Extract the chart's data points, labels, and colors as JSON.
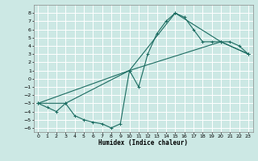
{
  "xlabel": "Humidex (Indice chaleur)",
  "bg_color": "#cce8e4",
  "grid_color": "#ffffff",
  "line_color": "#1a6b60",
  "xlim": [
    -0.5,
    23.5
  ],
  "ylim": [
    -6.5,
    9.0
  ],
  "xticks": [
    0,
    1,
    2,
    3,
    4,
    5,
    6,
    7,
    8,
    9,
    10,
    11,
    12,
    13,
    14,
    15,
    16,
    17,
    18,
    19,
    20,
    21,
    22,
    23
  ],
  "yticks": [
    -6,
    -5,
    -4,
    -3,
    -2,
    -1,
    0,
    1,
    2,
    3,
    4,
    5,
    6,
    7,
    8
  ],
  "line1_x": [
    0,
    1,
    2,
    3,
    4,
    5,
    6,
    7,
    8,
    9,
    10,
    11,
    12,
    13,
    14,
    15,
    16,
    17,
    18,
    19,
    20,
    21,
    22,
    23
  ],
  "line1_y": [
    -3.0,
    -3.5,
    -4.0,
    -3.0,
    -4.5,
    -5.0,
    -5.3,
    -5.5,
    -6.0,
    -5.5,
    1.0,
    -1.0,
    3.0,
    5.5,
    7.0,
    8.0,
    7.5,
    6.0,
    4.5,
    4.5,
    4.5,
    4.5,
    4.0,
    3.0
  ],
  "line2_x": [
    0,
    3,
    10,
    15,
    20,
    23
  ],
  "line2_y": [
    -3.0,
    -3.0,
    1.0,
    8.0,
    4.5,
    3.0
  ],
  "line3_x": [
    0,
    10,
    20,
    23
  ],
  "line3_y": [
    -3.0,
    1.0,
    4.5,
    3.0
  ]
}
